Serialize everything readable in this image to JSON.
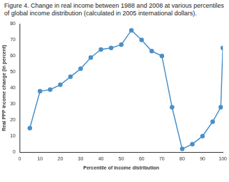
{
  "chart_data": {
    "type": "line",
    "title": "Figure 4. Change in real income between 1988 and 2008 at various percentiles of global income distribution (calculated in 2005 international dollars).",
    "x_label": "Percentile of income distribution",
    "y_label": "Real PPP income change (in percent)",
    "x": [
      5,
      10,
      15,
      20,
      25,
      30,
      35,
      40,
      45,
      50,
      55,
      60,
      65,
      70,
      75,
      80,
      85,
      90,
      95,
      99,
      100
    ],
    "values": [
      15,
      38,
      39,
      42,
      47,
      52,
      59,
      64,
      65,
      67,
      76,
      70,
      63,
      60,
      28,
      2,
      5,
      10,
      19,
      28,
      65
    ],
    "color": "#4a8fc7",
    "marker": "circle",
    "xlim": [
      0,
      100
    ],
    "xticks": [
      0,
      10,
      20,
      30,
      40,
      50,
      60,
      70,
      80,
      90,
      100
    ],
    "ylim": [
      0,
      80
    ],
    "yticks": [
      0,
      10,
      20,
      30,
      40,
      50,
      60,
      70,
      80
    ],
    "grid": false
  }
}
